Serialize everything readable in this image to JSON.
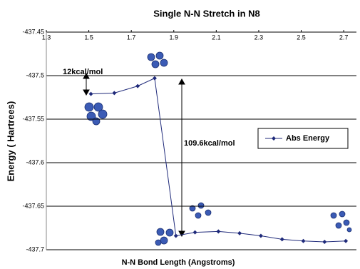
{
  "chart_data": {
    "type": "line",
    "title": "Single N-N Stretch in N8",
    "x_label": "N-N Bond Length (Angstroms)",
    "y_label": "Energy ( Hartrees)",
    "x": [
      1.51,
      1.62,
      1.73,
      1.81,
      1.91,
      2.0,
      2.11,
      2.21,
      2.31,
      2.41,
      2.51,
      2.61,
      2.71
    ],
    "series": [
      {
        "name": "Abs Energy",
        "color": "#1f2a7a",
        "values": [
          -437.521,
          -437.52,
          -437.512,
          -437.503,
          -437.684,
          -437.68,
          -437.679,
          -437.681,
          -437.684,
          -437.688,
          -437.69,
          -437.691,
          -437.69
        ]
      }
    ],
    "xlim": [
      1.3,
      2.76
    ],
    "xticks": [
      1.3,
      1.5,
      1.7,
      1.9,
      2.1,
      2.3,
      2.5,
      2.7
    ],
    "ylim": [
      -437.7,
      -437.45
    ],
    "yticks": [
      -437.45,
      -437.5,
      -437.55,
      -437.6,
      -437.65,
      -437.7
    ],
    "grid": true,
    "legend": "right",
    "annotations": [
      "12kcal/mol",
      "109.6kcal/mol"
    ]
  }
}
